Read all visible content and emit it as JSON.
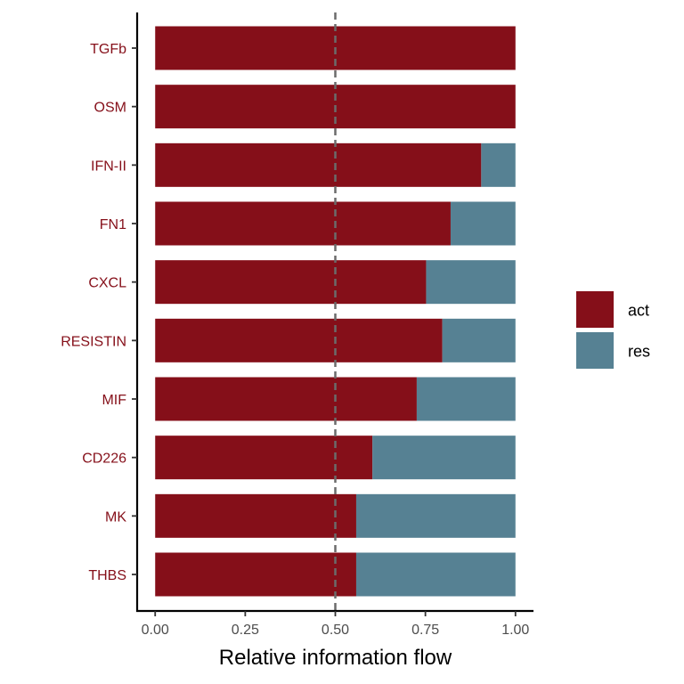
{
  "chart_data": {
    "type": "bar",
    "orientation": "horizontal",
    "stacked": true,
    "categories": [
      "TGFb",
      "OSM",
      "IFN-II",
      "FN1",
      "CXCL",
      "RESISTIN",
      "MIF",
      "CD226",
      "MK",
      "THBS"
    ],
    "series": [
      {
        "name": "act",
        "color": "#850F19",
        "values": [
          1.0,
          1.0,
          0.905,
          0.82,
          0.752,
          0.797,
          0.726,
          0.603,
          0.558,
          0.558
        ]
      },
      {
        "name": "res",
        "color": "#568193",
        "values": [
          0.0,
          0.0,
          0.095,
          0.18,
          0.248,
          0.203,
          0.274,
          0.397,
          0.442,
          0.442
        ]
      }
    ],
    "xlabel": "Relative information flow",
    "ylabel": "",
    "xlim": [
      -0.05,
      1.05
    ],
    "x_ticks": [
      "0.00",
      "0.25",
      "0.50",
      "0.75",
      "1.00"
    ],
    "x_tick_values": [
      0,
      0.25,
      0.5,
      0.75,
      1.0
    ],
    "reference_line": {
      "x": 0.5,
      "style": "dashed",
      "color": "#6b6b6b"
    },
    "category_label_color": "#850F19",
    "legend": {
      "position": "right",
      "entries": [
        "act",
        "res"
      ]
    },
    "grid": false
  }
}
